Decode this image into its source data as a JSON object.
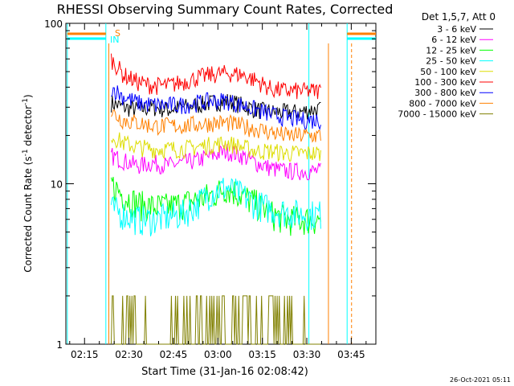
{
  "chart_data": {
    "type": "line",
    "title": "RHESSI Observing Summary Count Rates, Corrected",
    "xlabel": "Start Time (31-Jan-16 02:08:42)",
    "ylabel": "Corrected Count Rate (s⁻¹ detector⁻¹)",
    "ylabel_parts": {
      "base": "Corrected Count Rate (s",
      "sup1": "-1",
      "mid": " detector",
      "sup2": "-1",
      "end": ")"
    },
    "scale_y": "log",
    "xlim_min": [
      8.7,
      113.3
    ],
    "ylim": [
      1,
      100
    ],
    "x_ticks": [
      {
        "min": 15,
        "label": "02:15"
      },
      {
        "min": 30,
        "label": "02:30"
      },
      {
        "min": 45,
        "label": "02:45"
      },
      {
        "min": 60,
        "label": "03:00"
      },
      {
        "min": 75,
        "label": "03:15"
      },
      {
        "min": 90,
        "label": "03:30"
      },
      {
        "min": 105,
        "label": "03:45"
      }
    ],
    "y_ticks": [
      {
        "value": 1,
        "label": "1"
      },
      {
        "value": 10,
        "label": "10"
      },
      {
        "value": 100,
        "label": "100"
      }
    ],
    "legend_header": "Det 1,5,7, Att 0",
    "legend_position": "top-right",
    "series": [
      {
        "name": "3 - 6 keV",
        "color": "#000000",
        "points": [
          [
            24,
            32
          ],
          [
            28,
            30
          ],
          [
            33,
            29
          ],
          [
            38,
            30
          ],
          [
            43,
            29
          ],
          [
            48,
            30
          ],
          [
            53,
            31
          ],
          [
            58,
            32
          ],
          [
            63,
            33
          ],
          [
            68,
            31
          ],
          [
            73,
            29
          ],
          [
            78,
            28
          ],
          [
            83,
            28
          ],
          [
            88,
            28
          ],
          [
            91,
            29
          ],
          [
            95,
            29
          ]
        ]
      },
      {
        "name": "6 - 12 keV",
        "color": "#ff00ff",
        "points": [
          [
            24,
            15
          ],
          [
            28,
            14
          ],
          [
            33,
            13
          ],
          [
            38,
            13.5
          ],
          [
            43,
            13
          ],
          [
            48,
            13.5
          ],
          [
            53,
            14
          ],
          [
            58,
            15
          ],
          [
            63,
            16
          ],
          [
            68,
            15
          ],
          [
            73,
            13.5
          ],
          [
            78,
            12.5
          ],
          [
            83,
            12
          ],
          [
            88,
            12
          ],
          [
            92,
            12
          ],
          [
            95,
            12
          ]
        ]
      },
      {
        "name": "12 - 25 keV",
        "color": "#00ff00",
        "points": [
          [
            24,
            10
          ],
          [
            28,
            8.5
          ],
          [
            33,
            7.5
          ],
          [
            38,
            7.2
          ],
          [
            43,
            7.2
          ],
          [
            48,
            7.5
          ],
          [
            53,
            8
          ],
          [
            58,
            8.5
          ],
          [
            63,
            9.5
          ],
          [
            68,
            8.5
          ],
          [
            73,
            7.5
          ],
          [
            78,
            6.5
          ],
          [
            83,
            6
          ],
          [
            88,
            6
          ],
          [
            92,
            6
          ],
          [
            95,
            6
          ]
        ]
      },
      {
        "name": "25 - 50 keV",
        "color": "#00ffff",
        "points": [
          [
            24,
            7
          ],
          [
            28,
            6.5
          ],
          [
            33,
            6
          ],
          [
            38,
            6
          ],
          [
            43,
            6.2
          ],
          [
            48,
            6.5
          ],
          [
            53,
            7.5
          ],
          [
            58,
            9
          ],
          [
            63,
            9.5
          ],
          [
            68,
            8.5
          ],
          [
            73,
            7.5
          ],
          [
            78,
            7
          ],
          [
            83,
            6.7
          ],
          [
            88,
            6.5
          ],
          [
            92,
            6.5
          ],
          [
            95,
            6.5
          ]
        ]
      },
      {
        "name": "50 - 100 keV",
        "color": "#dddd00",
        "points": [
          [
            24,
            20
          ],
          [
            28,
            18
          ],
          [
            33,
            17
          ],
          [
            38,
            16.5
          ],
          [
            43,
            16.5
          ],
          [
            48,
            16.5
          ],
          [
            53,
            17
          ],
          [
            58,
            17.5
          ],
          [
            63,
            18
          ],
          [
            68,
            17
          ],
          [
            73,
            16
          ],
          [
            78,
            16
          ],
          [
            83,
            15.5
          ],
          [
            88,
            15.5
          ],
          [
            92,
            15.5
          ],
          [
            95,
            15.5
          ]
        ]
      },
      {
        "name": "100 - 300 keV",
        "color": "#ff0000",
        "points": [
          [
            24,
            60
          ],
          [
            28,
            48
          ],
          [
            33,
            43
          ],
          [
            38,
            41
          ],
          [
            43,
            41
          ],
          [
            48,
            43
          ],
          [
            53,
            46
          ],
          [
            58,
            48
          ],
          [
            63,
            49
          ],
          [
            68,
            48
          ],
          [
            73,
            44
          ],
          [
            78,
            39
          ],
          [
            83,
            38
          ],
          [
            88,
            38
          ],
          [
            92,
            38
          ],
          [
            95,
            38
          ]
        ]
      },
      {
        "name": "300 - 800 keV",
        "color": "#0000ff",
        "points": [
          [
            24,
            40
          ],
          [
            28,
            35
          ],
          [
            33,
            32
          ],
          [
            38,
            31
          ],
          [
            43,
            31
          ],
          [
            48,
            31
          ],
          [
            53,
            32
          ],
          [
            58,
            33
          ],
          [
            63,
            33
          ],
          [
            68,
            31
          ],
          [
            73,
            29
          ],
          [
            78,
            27
          ],
          [
            83,
            26
          ],
          [
            88,
            25
          ],
          [
            92,
            25
          ],
          [
            95,
            25
          ]
        ]
      },
      {
        "name": "800 - 7000 keV",
        "color": "#ff8000",
        "points": [
          [
            24,
            28
          ],
          [
            28,
            25
          ],
          [
            33,
            24
          ],
          [
            38,
            23
          ],
          [
            43,
            23
          ],
          [
            48,
            23
          ],
          [
            53,
            23.5
          ],
          [
            58,
            24
          ],
          [
            63,
            24
          ],
          [
            68,
            23
          ],
          [
            73,
            22
          ],
          [
            78,
            21
          ],
          [
            83,
            20
          ],
          [
            88,
            20
          ],
          [
            92,
            20
          ],
          [
            95,
            20
          ]
        ]
      },
      {
        "name": "7000 - 15000 keV",
        "color": "#808000",
        "points": [
          [
            24,
            1.6
          ],
          [
            30,
            1.2
          ],
          [
            36,
            1.1
          ],
          [
            42,
            1.1
          ],
          [
            48,
            1.25
          ],
          [
            54,
            1.6
          ],
          [
            60,
            1.7
          ],
          [
            66,
            1.7
          ],
          [
            72,
            1.4
          ],
          [
            78,
            1.2
          ],
          [
            84,
            1.1
          ],
          [
            90,
            1.1
          ],
          [
            95,
            1.1
          ]
        ]
      }
    ],
    "flags": {
      "attenuator_label": "S",
      "attenuator_color": "#ff8000",
      "night_label": "IN",
      "night_color": "#00ffff"
    },
    "cyan_vlines_min": [
      9.2,
      22.2,
      90.7,
      103.6
    ],
    "orange_vlines_min": [
      23.2,
      97.3
    ],
    "orange_dashed_min": [
      23.2,
      105.1
    ]
  },
  "footer_date": "26-Oct-2021 05:11"
}
